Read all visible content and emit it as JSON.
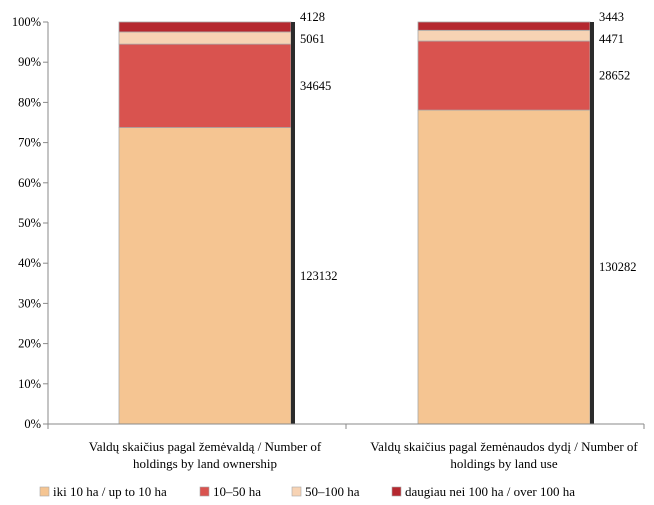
{
  "chart_data": {
    "type": "bar",
    "stacked": true,
    "normalized": true,
    "categories": [
      [
        "Valdų skaičius pagal žemėvaldą / Number of",
        "holdings by land ownership"
      ],
      [
        "Valdų skaičius pagal žemėnaudos dydį / Number of",
        "holdings by land use"
      ]
    ],
    "series": [
      {
        "name": "iki 10 ha / up to 10 ha",
        "color": "#f5c592",
        "values": [
          123132,
          130282
        ]
      },
      {
        "name": "10–50 ha",
        "color": "#d9534f",
        "values": [
          34645,
          28652
        ]
      },
      {
        "name": "50–100 ha",
        "color": "#f7d3b4",
        "values": [
          5061,
          4471
        ]
      },
      {
        "name": "daugiau nei 100 ha / over 100 ha",
        "color": "#b5282f",
        "values": [
          4128,
          3443
        ]
      }
    ],
    "y_ticks": [
      "0%",
      "10%",
      "20%",
      "30%",
      "40%",
      "50%",
      "60%",
      "70%",
      "80%",
      "90%",
      "100%"
    ],
    "ylim": [
      0,
      100
    ],
    "grid": false,
    "legend_position": "bottom"
  }
}
